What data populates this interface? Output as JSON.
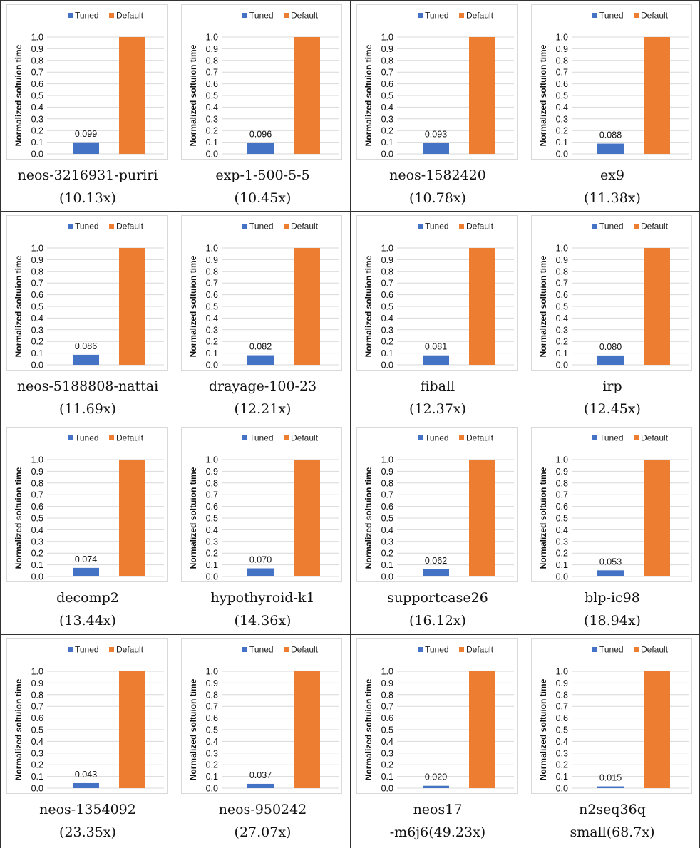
{
  "legend": {
    "tuned": "Tuned",
    "default": "Default"
  },
  "colors": {
    "tuned": "#4472C4",
    "default": "#ED7D31",
    "grid": "#d9d9d9",
    "text": "#000000"
  },
  "chart_data": [
    {
      "type": "bar",
      "categories": [
        "Tuned",
        "Default"
      ],
      "values": [
        0.099,
        1.0
      ],
      "ylabel": "Normalized soltuion time",
      "ylim": [
        0,
        1.0
      ],
      "yticks": [
        "0.0",
        "0.1",
        "0.2",
        "0.3",
        "0.4",
        "0.5",
        "0.6",
        "0.7",
        "0.8",
        "0.9",
        "1.0"
      ],
      "bar_label": "0.099",
      "legend_position": "top",
      "grid": true,
      "caption_line1": "neos-3216931-puriri",
      "caption_line2": "(10.13x)"
    },
    {
      "type": "bar",
      "categories": [
        "Tuned",
        "Default"
      ],
      "values": [
        0.096,
        1.0
      ],
      "ylabel": "Normalized soltuion time",
      "ylim": [
        0,
        1.0
      ],
      "yticks": [
        "0.0",
        "0.1",
        "0.2",
        "0.3",
        "0.4",
        "0.5",
        "0.6",
        "0.7",
        "0.8",
        "0.9",
        "1.0"
      ],
      "bar_label": "0.096",
      "legend_position": "top",
      "grid": true,
      "caption_line1": "exp-1-500-5-5",
      "caption_line2": "(10.45x)"
    },
    {
      "type": "bar",
      "categories": [
        "Tuned",
        "Default"
      ],
      "values": [
        0.093,
        1.0
      ],
      "ylabel": "Normalized soltuion time",
      "ylim": [
        0,
        1.0
      ],
      "yticks": [
        "0.0",
        "0.1",
        "0.2",
        "0.3",
        "0.4",
        "0.5",
        "0.6",
        "0.7",
        "0.8",
        "0.9",
        "1.0"
      ],
      "bar_label": "0.093",
      "legend_position": "top",
      "grid": true,
      "caption_line1": "neos-1582420",
      "caption_line2": "(10.78x)"
    },
    {
      "type": "bar",
      "categories": [
        "Tuned",
        "Default"
      ],
      "values": [
        0.088,
        1.0
      ],
      "ylabel": "Normalized soltuion time",
      "ylim": [
        0,
        1.0
      ],
      "yticks": [
        "0.0",
        "0.1",
        "0.2",
        "0.3",
        "0.4",
        "0.5",
        "0.6",
        "0.7",
        "0.8",
        "0.9",
        "1.0"
      ],
      "bar_label": "0.088",
      "legend_position": "top",
      "grid": true,
      "caption_line1": "ex9",
      "caption_line2": "(11.38x)"
    },
    {
      "type": "bar",
      "categories": [
        "Tuned",
        "Default"
      ],
      "values": [
        0.086,
        1.0
      ],
      "ylabel": "Normalized soltuion time",
      "ylim": [
        0,
        1.0
      ],
      "yticks": [
        "0.0",
        "0.1",
        "0.2",
        "0.3",
        "0.4",
        "0.5",
        "0.6",
        "0.7",
        "0.8",
        "0.9",
        "1.0"
      ],
      "bar_label": "0.086",
      "legend_position": "top",
      "grid": true,
      "caption_line1": "neos-5188808-nattai",
      "caption_line2": "(11.69x)"
    },
    {
      "type": "bar",
      "categories": [
        "Tuned",
        "Default"
      ],
      "values": [
        0.082,
        1.0
      ],
      "ylabel": "Normalized soltuion time",
      "ylim": [
        0,
        1.0
      ],
      "yticks": [
        "0.0",
        "0.1",
        "0.2",
        "0.3",
        "0.4",
        "0.5",
        "0.6",
        "0.7",
        "0.8",
        "0.9",
        "1.0"
      ],
      "bar_label": "0.082",
      "legend_position": "top",
      "grid": true,
      "caption_line1": "drayage-100-23",
      "caption_line2": "(12.21x)"
    },
    {
      "type": "bar",
      "categories": [
        "Tuned",
        "Default"
      ],
      "values": [
        0.081,
        1.0
      ],
      "ylabel": "Normalized soltuion time",
      "ylim": [
        0,
        1.0
      ],
      "yticks": [
        "0.0",
        "0.1",
        "0.2",
        "0.3",
        "0.4",
        "0.5",
        "0.6",
        "0.7",
        "0.8",
        "0.9",
        "1.0"
      ],
      "bar_label": "0.081",
      "legend_position": "top",
      "grid": true,
      "caption_line1": "fiball",
      "caption_line2": "(12.37x)"
    },
    {
      "type": "bar",
      "categories": [
        "Tuned",
        "Default"
      ],
      "values": [
        0.08,
        1.0
      ],
      "ylabel": "Normalized soltuion time",
      "ylim": [
        0,
        1.0
      ],
      "yticks": [
        "0.0",
        "0.1",
        "0.2",
        "0.3",
        "0.4",
        "0.5",
        "0.6",
        "0.7",
        "0.8",
        "0.9",
        "1.0"
      ],
      "bar_label": "0.080",
      "legend_position": "top",
      "grid": true,
      "caption_line1": "irp",
      "caption_line2": "(12.45x)"
    },
    {
      "type": "bar",
      "categories": [
        "Tuned",
        "Default"
      ],
      "values": [
        0.074,
        1.0
      ],
      "ylabel": "Normalized soltuion time",
      "ylim": [
        0,
        1.0
      ],
      "yticks": [
        "0.0",
        "0.1",
        "0.2",
        "0.3",
        "0.4",
        "0.5",
        "0.6",
        "0.7",
        "0.8",
        "0.9",
        "1.0"
      ],
      "bar_label": "0.074",
      "legend_position": "top",
      "grid": true,
      "caption_line1": "decomp2",
      "caption_line2": "(13.44x)"
    },
    {
      "type": "bar",
      "categories": [
        "Tuned",
        "Default"
      ],
      "values": [
        0.07,
        1.0
      ],
      "ylabel": "Normalized soltuion time",
      "ylim": [
        0,
        1.0
      ],
      "yticks": [
        "0.0",
        "0.1",
        "0.2",
        "0.3",
        "0.4",
        "0.5",
        "0.6",
        "0.7",
        "0.8",
        "0.9",
        "1.0"
      ],
      "bar_label": "0.070",
      "legend_position": "top",
      "grid": true,
      "caption_line1": "hypothyroid-k1",
      "caption_line2": "(14.36x)"
    },
    {
      "type": "bar",
      "categories": [
        "Tuned",
        "Default"
      ],
      "values": [
        0.062,
        1.0
      ],
      "ylabel": "Normalized soltuion time",
      "ylim": [
        0,
        1.0
      ],
      "yticks": [
        "0.0",
        "0.1",
        "0.2",
        "0.3",
        "0.4",
        "0.5",
        "0.6",
        "0.7",
        "0.8",
        "0.9",
        "1.0"
      ],
      "bar_label": "0.062",
      "legend_position": "top",
      "grid": true,
      "caption_line1": "supportcase26",
      "caption_line2": "(16.12x)"
    },
    {
      "type": "bar",
      "categories": [
        "Tuned",
        "Default"
      ],
      "values": [
        0.053,
        1.0
      ],
      "ylabel": "Normalized soltuion time",
      "ylim": [
        0,
        1.0
      ],
      "yticks": [
        "0.0",
        "0.1",
        "0.2",
        "0.3",
        "0.4",
        "0.5",
        "0.6",
        "0.7",
        "0.8",
        "0.9",
        "1.0"
      ],
      "bar_label": "0.053",
      "legend_position": "top",
      "grid": true,
      "caption_line1": "blp-ic98",
      "caption_line2": "(18.94x)"
    },
    {
      "type": "bar",
      "categories": [
        "Tuned",
        "Default"
      ],
      "values": [
        0.043,
        1.0
      ],
      "ylabel": "Normalized soltuion time",
      "ylim": [
        0,
        1.0
      ],
      "yticks": [
        "0.0",
        "0.1",
        "0.2",
        "0.3",
        "0.4",
        "0.5",
        "0.6",
        "0.7",
        "0.8",
        "0.9",
        "1.0"
      ],
      "bar_label": "0.043",
      "legend_position": "top",
      "grid": true,
      "caption_line1": "neos-1354092",
      "caption_line2": "(23.35x)"
    },
    {
      "type": "bar",
      "categories": [
        "Tuned",
        "Default"
      ],
      "values": [
        0.037,
        1.0
      ],
      "ylabel": "Normalized soltuion time",
      "ylim": [
        0,
        1.0
      ],
      "yticks": [
        "0.0",
        "0.1",
        "0.2",
        "0.3",
        "0.4",
        "0.5",
        "0.6",
        "0.7",
        "0.8",
        "0.9",
        "1.0"
      ],
      "bar_label": "0.037",
      "legend_position": "top",
      "grid": true,
      "caption_line1": "neos-950242",
      "caption_line2": "(27.07x)"
    },
    {
      "type": "bar",
      "categories": [
        "Tuned",
        "Default"
      ],
      "values": [
        0.02,
        1.0
      ],
      "ylabel": "Normalized soltuion time",
      "ylim": [
        0,
        1.0
      ],
      "yticks": [
        "0.0",
        "0.1",
        "0.2",
        "0.3",
        "0.4",
        "0.5",
        "0.6",
        "0.7",
        "0.8",
        "0.9",
        "1.0"
      ],
      "bar_label": "0.020",
      "legend_position": "top",
      "grid": true,
      "caption_line1": "neos17",
      "caption_line2": "-m6j6(49.23x)"
    },
    {
      "type": "bar",
      "categories": [
        "Tuned",
        "Default"
      ],
      "values": [
        0.015,
        1.0
      ],
      "ylabel": "Normalized soltuion time",
      "ylim": [
        0,
        1.0
      ],
      "yticks": [
        "0.0",
        "0.1",
        "0.2",
        "0.3",
        "0.4",
        "0.5",
        "0.6",
        "0.7",
        "0.8",
        "0.9",
        "1.0"
      ],
      "bar_label": "0.015",
      "legend_position": "top",
      "grid": true,
      "caption_line1": "n2seq36q",
      "caption_line2": "small(68.7x)"
    }
  ]
}
